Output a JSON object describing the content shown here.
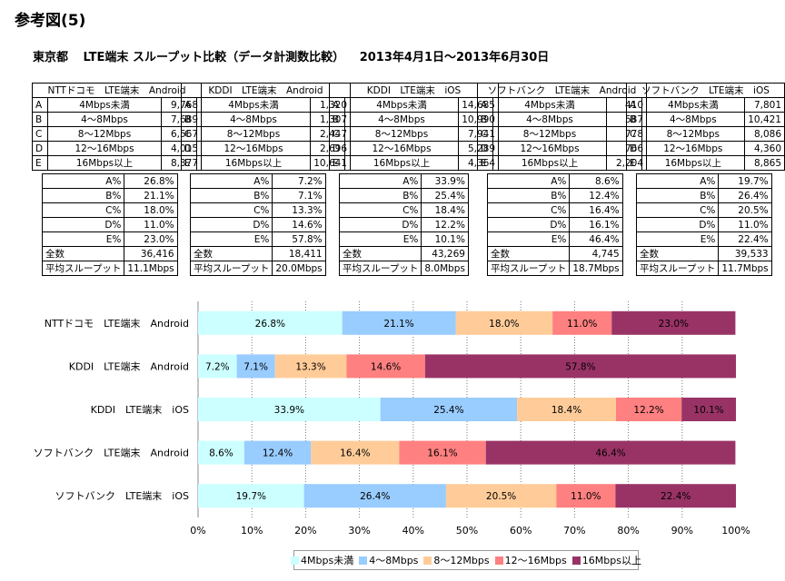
{
  "heading": "参考図(5)",
  "subtitle": {
    "region": "東京都",
    "title": "LTE端末 スループット比較（データ計測数比較）",
    "period": "2013年4月1日～2013年6月30日"
  },
  "table": {
    "groups": [
      "NTTドコモ　LTE端末　Android",
      "KDDI　LTE端末　Android",
      "KDDI　LTE端末　iOS",
      "ソフトバンク　LTE端末　Android",
      "ソフトバンク　LTE端末　iOS"
    ],
    "rows": [
      {
        "letter": "A",
        "label": "4Mbps未満",
        "values": [
          "9,768",
          "1,320",
          "14,685",
          "410",
          "7,801"
        ]
      },
      {
        "letter": "B",
        "label": "4～8Mbps",
        "values": [
          "7,689",
          "1,307",
          "10,990",
          "587",
          "10,421"
        ]
      },
      {
        "letter": "C",
        "label": "8～12Mbps",
        "values": [
          "6,567",
          "2,447",
          "7,941",
          "778",
          "8,086"
        ]
      },
      {
        "letter": "D",
        "label": "12～16Mbps",
        "values": [
          "4,015",
          "2,696",
          "5,289",
          "766",
          "4,360"
        ]
      },
      {
        "letter": "E",
        "label": "16Mbps以上",
        "values": [
          "8,377",
          "10,641",
          "4,364",
          "2,204",
          "8,865"
        ]
      }
    ],
    "pct_rows": [
      {
        "label": "A%",
        "values": [
          "26.8%",
          "7.2%",
          "33.9%",
          "8.6%",
          "19.7%"
        ]
      },
      {
        "label": "B%",
        "values": [
          "21.1%",
          "7.1%",
          "25.4%",
          "12.4%",
          "26.4%"
        ]
      },
      {
        "label": "C%",
        "values": [
          "18.0%",
          "13.3%",
          "18.4%",
          "16.4%",
          "20.5%"
        ]
      },
      {
        "label": "D%",
        "values": [
          "11.0%",
          "14.6%",
          "12.2%",
          "16.1%",
          "11.0%"
        ]
      },
      {
        "label": "E%",
        "values": [
          "23.0%",
          "57.8%",
          "10.1%",
          "46.4%",
          "22.4%"
        ]
      }
    ],
    "total_label": "全数",
    "totals": [
      "36,416",
      "18,411",
      "43,269",
      "4,745",
      "39,533"
    ],
    "avg_label": "平均スループット",
    "averages": [
      "11.1Mbps",
      "20.0Mbps",
      "8.0Mbps",
      "18.7Mbps",
      "11.7Mbps"
    ]
  },
  "chart_data": {
    "type": "bar",
    "orientation": "horizontal",
    "stacked": "percent",
    "categories": [
      "NTTドコモ　LTE端末　Android",
      "KDDI　LTE端末　Android",
      "KDDI　LTE端末　iOS",
      "ソフトバンク　LTE端末　Android",
      "ソフトバンク　LTE端末　iOS"
    ],
    "series": [
      {
        "name": "4Mbps未満",
        "color": "#ccffff",
        "values": [
          26.8,
          7.2,
          33.9,
          8.6,
          19.7
        ]
      },
      {
        "name": "4～8Mbps",
        "color": "#99ccff",
        "values": [
          21.1,
          7.1,
          25.4,
          12.4,
          26.4
        ]
      },
      {
        "name": "8～12Mbps",
        "color": "#ffcc99",
        "values": [
          18.0,
          13.3,
          18.4,
          16.4,
          20.5
        ]
      },
      {
        "name": "12～16Mbps",
        "color": "#ff8080",
        "values": [
          11.0,
          14.6,
          12.2,
          16.1,
          11.0
        ]
      },
      {
        "name": "16Mbps以上",
        "color": "#993366",
        "values": [
          23.0,
          57.8,
          10.1,
          46.4,
          22.4
        ]
      }
    ],
    "xlim": [
      0,
      100
    ],
    "xticks": [
      "0%",
      "10%",
      "20%",
      "30%",
      "40%",
      "50%",
      "60%",
      "70%",
      "80%",
      "90%",
      "100%"
    ],
    "grid": "vertical dotted",
    "legend": "bottom"
  }
}
